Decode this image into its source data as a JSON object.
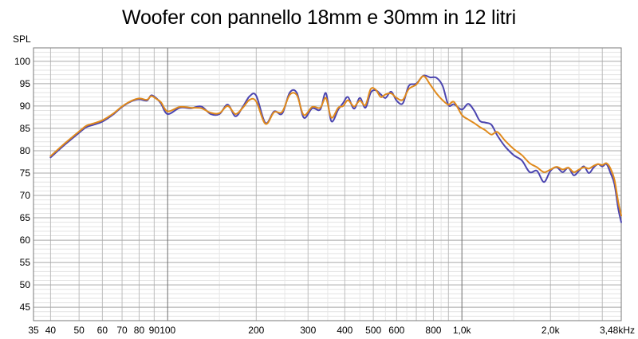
{
  "chart_data": {
    "type": "line",
    "title": "Woofer con pannello 18mm e 30mm in 12 litri",
    "ylabel": "SPL",
    "xscale": "log",
    "xlim": [
      35,
      3480
    ],
    "ylim": [
      42,
      103
    ],
    "grid": true,
    "x_ticks": [
      {
        "value": 35,
        "label": "35"
      },
      {
        "value": 40,
        "label": "40"
      },
      {
        "value": 50,
        "label": "50"
      },
      {
        "value": 60,
        "label": "60"
      },
      {
        "value": 70,
        "label": "70"
      },
      {
        "value": 80,
        "label": "80"
      },
      {
        "value": 90,
        "label": "90"
      },
      {
        "value": 100,
        "label": "100"
      },
      {
        "value": 200,
        "label": "200"
      },
      {
        "value": 300,
        "label": "300"
      },
      {
        "value": 400,
        "label": "400"
      },
      {
        "value": 500,
        "label": "500"
      },
      {
        "value": 600,
        "label": "600"
      },
      {
        "value": 800,
        "label": "800"
      },
      {
        "value": 1000,
        "label": "1,0k"
      },
      {
        "value": 2000,
        "label": "2,0k"
      },
      {
        "value": 3480,
        "label": "3,48kHz"
      }
    ],
    "y_ticks": [
      45,
      50,
      55,
      60,
      65,
      70,
      75,
      80,
      85,
      90,
      95,
      100
    ],
    "series": [
      {
        "color": "#4b45b0",
        "x": [
          40,
          45,
          50,
          53,
          56,
          60,
          65,
          70,
          75,
          80,
          85,
          88,
          92,
          95,
          100,
          110,
          120,
          130,
          140,
          150,
          160,
          170,
          180,
          190,
          200,
          215,
          230,
          245,
          260,
          275,
          290,
          310,
          330,
          345,
          360,
          380,
          395,
          410,
          430,
          450,
          470,
          490,
          510,
          530,
          550,
          575,
          600,
          630,
          660,
          700,
          740,
          780,
          820,
          860,
          900,
          940,
          1000,
          1050,
          1100,
          1150,
          1200,
          1260,
          1320,
          1400,
          1500,
          1600,
          1700,
          1800,
          1900,
          2000,
          2100,
          2200,
          2300,
          2400,
          2500,
          2600,
          2700,
          2800,
          2900,
          3000,
          3100,
          3200,
          3300,
          3400,
          3480
        ],
        "y": [
          78.5,
          81.5,
          84.0,
          85.3,
          85.8,
          86.5,
          88.0,
          89.8,
          91.0,
          91.5,
          91.2,
          92.4,
          91.6,
          90.5,
          88.2,
          89.6,
          89.5,
          89.9,
          88.2,
          88.2,
          90.3,
          87.7,
          89.8,
          92.2,
          92.3,
          86.2,
          88.8,
          88.3,
          93.0,
          92.9,
          87.4,
          89.5,
          89.2,
          92.9,
          86.6,
          89.2,
          90.7,
          92.0,
          89.4,
          91.8,
          89.6,
          93.0,
          93.5,
          92.6,
          91.8,
          93.2,
          91.2,
          90.6,
          94.5,
          95.0,
          96.8,
          96.4,
          96.3,
          94.5,
          90.2,
          90.4,
          89.2,
          90.5,
          89.0,
          86.7,
          86.3,
          85.8,
          83.4,
          81.0,
          79.0,
          77.8,
          75.2,
          75.5,
          73.0,
          75.5,
          76.3,
          75.2,
          76.2,
          74.5,
          75.5,
          76.5,
          75.0,
          76.2,
          77.0,
          76.5,
          77.0,
          75.0,
          72.5,
          67.0,
          64.0
        ]
      },
      {
        "color": "#e08a1c",
        "x": [
          40,
          45,
          50,
          53,
          56,
          60,
          65,
          70,
          75,
          80,
          85,
          88,
          92,
          95,
          100,
          110,
          120,
          130,
          140,
          150,
          160,
          170,
          180,
          190,
          200,
          215,
          230,
          245,
          260,
          275,
          290,
          310,
          330,
          345,
          360,
          380,
          395,
          410,
          430,
          450,
          470,
          490,
          510,
          530,
          550,
          575,
          600,
          630,
          660,
          700,
          740,
          780,
          820,
          860,
          900,
          940,
          1000,
          1050,
          1100,
          1150,
          1200,
          1260,
          1320,
          1400,
          1500,
          1600,
          1700,
          1800,
          1900,
          2000,
          2100,
          2200,
          2300,
          2400,
          2500,
          2600,
          2700,
          2800,
          2900,
          3000,
          3100,
          3200,
          3300,
          3400,
          3480
        ],
        "y": [
          78.8,
          81.8,
          84.3,
          85.6,
          86.1,
          86.8,
          88.2,
          89.9,
          91.1,
          91.7,
          91.4,
          92.2,
          91.5,
          90.8,
          88.8,
          89.8,
          89.6,
          89.5,
          88.5,
          88.4,
          90.0,
          88.2,
          89.6,
          91.4,
          91.0,
          86.0,
          88.6,
          88.7,
          92.5,
          92.4,
          88.0,
          89.8,
          89.6,
          91.8,
          87.4,
          89.6,
          90.0,
          91.3,
          89.9,
          91.2,
          90.2,
          93.8,
          93.6,
          92.0,
          92.6,
          92.8,
          91.8,
          91.4,
          93.8,
          94.8,
          96.7,
          94.8,
          92.8,
          91.3,
          90.3,
          90.9,
          88.0,
          87.0,
          86.2,
          85.3,
          84.6,
          83.6,
          84.2,
          82.3,
          80.4,
          79.0,
          77.2,
          76.3,
          75.2,
          75.8,
          76.4,
          75.8,
          76.2,
          75.2,
          75.8,
          76.3,
          76.0,
          76.6,
          77.0,
          76.8,
          77.2,
          76.0,
          73.5,
          68.5,
          65.5
        ]
      }
    ]
  }
}
